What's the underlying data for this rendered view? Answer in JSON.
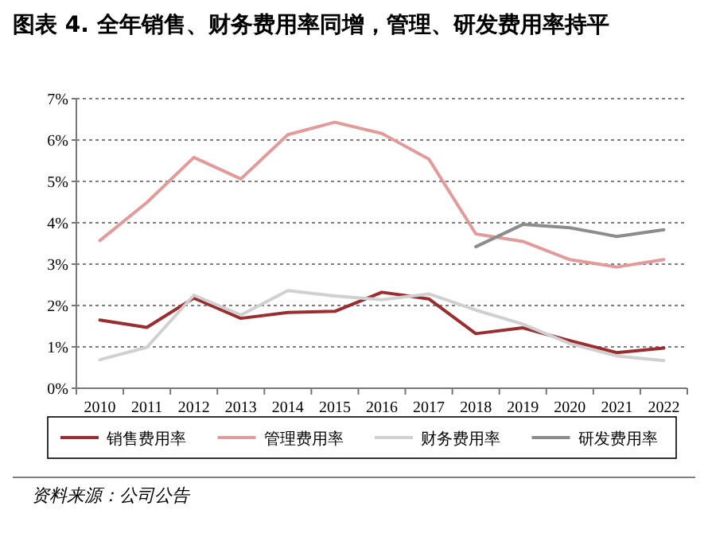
{
  "chart_data": {
    "type": "line",
    "title": "图表 4. 全年销售、财务费用率同增，管理、研发费用率持平",
    "categories": [
      "2010",
      "2011",
      "2012",
      "2013",
      "2014",
      "2015",
      "2016",
      "2017",
      "2018",
      "2019",
      "2020",
      "2021",
      "2022"
    ],
    "series": [
      {
        "name": "销售费用率",
        "color": "#9b2d30",
        "values": [
          1.65,
          1.47,
          2.18,
          1.69,
          1.83,
          1.86,
          2.32,
          2.16,
          1.32,
          1.46,
          1.15,
          0.86,
          0.97
        ]
      },
      {
        "name": "管理费用率",
        "color": "#e39a9a",
        "values": [
          3.57,
          4.49,
          5.58,
          5.06,
          6.13,
          6.43,
          6.16,
          5.54,
          3.73,
          3.55,
          3.11,
          2.93,
          3.11
        ]
      },
      {
        "name": "财务费用率",
        "color": "#d0d0d0",
        "values": [
          0.69,
          0.99,
          2.25,
          1.77,
          2.36,
          2.23,
          2.14,
          2.28,
          1.89,
          1.55,
          1.08,
          0.78,
          0.67
        ]
      },
      {
        "name": "研发费用率",
        "color": "#8c8c8c",
        "values": [
          null,
          null,
          null,
          null,
          null,
          null,
          null,
          null,
          3.42,
          3.96,
          3.88,
          3.67,
          3.83
        ]
      }
    ],
    "ylim": [
      0,
      7
    ],
    "yticks": [
      {
        "value": 0,
        "label": "0%"
      },
      {
        "value": 1,
        "label": "1%"
      },
      {
        "value": 2,
        "label": "2%"
      },
      {
        "value": 3,
        "label": "3%"
      },
      {
        "value": 4,
        "label": "4%"
      },
      {
        "value": 5,
        "label": "5%"
      },
      {
        "value": 6,
        "label": "6%"
      },
      {
        "value": 7,
        "label": "7%"
      }
    ],
    "grid": "y",
    "legend": "bottom",
    "line_style": "solid",
    "marker": "none",
    "annotations": [
      "资料来源：公司公告"
    ]
  }
}
